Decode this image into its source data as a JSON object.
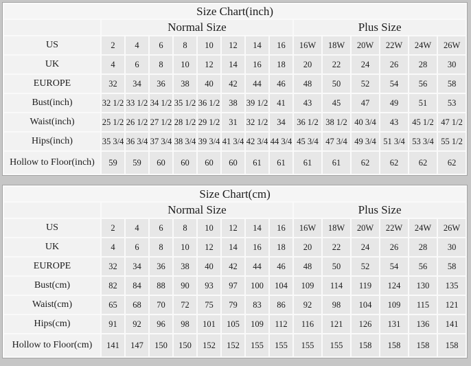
{
  "colors": {
    "page_background": "#c6c6c6",
    "data_cell_background": "#e7e7e7",
    "header_cell_background": "#f2f2f2",
    "gridline": "#fafafa",
    "table_border": "#a3a3a3",
    "text": "#1b1b1b"
  },
  "chart_data": [
    {
      "type": "table",
      "title": "Size Chart(inch)",
      "column_groups": [
        {
          "label": "Normal Size",
          "span": 8
        },
        {
          "label": "Plus Size",
          "span": 6
        }
      ],
      "rows": [
        {
          "label": "US",
          "values": [
            "2",
            "4",
            "6",
            "8",
            "10",
            "12",
            "14",
            "16",
            "16W",
            "18W",
            "20W",
            "22W",
            "24W",
            "26W"
          ]
        },
        {
          "label": "UK",
          "values": [
            "4",
            "6",
            "8",
            "10",
            "12",
            "14",
            "16",
            "18",
            "20",
            "22",
            "24",
            "26",
            "28",
            "30"
          ]
        },
        {
          "label": "EUROPE",
          "values": [
            "32",
            "34",
            "36",
            "38",
            "40",
            "42",
            "44",
            "46",
            "48",
            "50",
            "52",
            "54",
            "56",
            "58"
          ]
        },
        {
          "label": "Bust(inch)",
          "values": [
            "32 1/2",
            "33 1/2",
            "34 1/2",
            "35 1/2",
            "36 1/2",
            "38",
            "39 1/2",
            "41",
            "43",
            "45",
            "47",
            "49",
            "51",
            "53"
          ]
        },
        {
          "label": "Waist(inch)",
          "values": [
            "25 1/2",
            "26 1/2",
            "27 1/2",
            "28 1/2",
            "29 1/2",
            "31",
            "32 1/2",
            "34",
            "36 1/2",
            "38 1/2",
            "40 3/4",
            "43",
            "45 1/2",
            "47 1/2"
          ]
        },
        {
          "label": "Hips(inch)",
          "values": [
            "35 3/4",
            "36 3/4",
            "37 3/4",
            "38 3/4",
            "39 3/4",
            "41 3/4",
            "42 3/4",
            "44 3/4",
            "45 3/4",
            "47 3/4",
            "49 3/4",
            "51 3/4",
            "53 3/4",
            "55 1/2"
          ]
        },
        {
          "label": "Hollow to Floor(inch)",
          "values": [
            "59",
            "59",
            "60",
            "60",
            "60",
            "60",
            "61",
            "61",
            "61",
            "61",
            "62",
            "62",
            "62",
            "62"
          ]
        }
      ]
    },
    {
      "type": "table",
      "title": "Size Chart(cm)",
      "column_groups": [
        {
          "label": "Normal Size",
          "span": 8
        },
        {
          "label": "Plus Size",
          "span": 6
        }
      ],
      "rows": [
        {
          "label": "US",
          "values": [
            "2",
            "4",
            "6",
            "8",
            "10",
            "12",
            "14",
            "16",
            "16W",
            "18W",
            "20W",
            "22W",
            "24W",
            "26W"
          ]
        },
        {
          "label": "UK",
          "values": [
            "4",
            "6",
            "8",
            "10",
            "12",
            "14",
            "16",
            "18",
            "20",
            "22",
            "24",
            "26",
            "28",
            "30"
          ]
        },
        {
          "label": "EUROPE",
          "values": [
            "32",
            "34",
            "36",
            "38",
            "40",
            "42",
            "44",
            "46",
            "48",
            "50",
            "52",
            "54",
            "56",
            "58"
          ]
        },
        {
          "label": "Bust(cm)",
          "values": [
            "82",
            "84",
            "88",
            "90",
            "93",
            "97",
            "100",
            "104",
            "109",
            "114",
            "119",
            "124",
            "130",
            "135"
          ]
        },
        {
          "label": "Waist(cm)",
          "values": [
            "65",
            "68",
            "70",
            "72",
            "75",
            "79",
            "83",
            "86",
            "92",
            "98",
            "104",
            "109",
            "115",
            "121"
          ]
        },
        {
          "label": "Hips(cm)",
          "values": [
            "91",
            "92",
            "96",
            "98",
            "101",
            "105",
            "109",
            "112",
            "116",
            "121",
            "126",
            "131",
            "136",
            "141"
          ]
        },
        {
          "label": "Hollow to Floor(cm)",
          "values": [
            "141",
            "147",
            "150",
            "150",
            "152",
            "152",
            "155",
            "155",
            "155",
            "155",
            "158",
            "158",
            "158",
            "158"
          ]
        }
      ]
    }
  ]
}
